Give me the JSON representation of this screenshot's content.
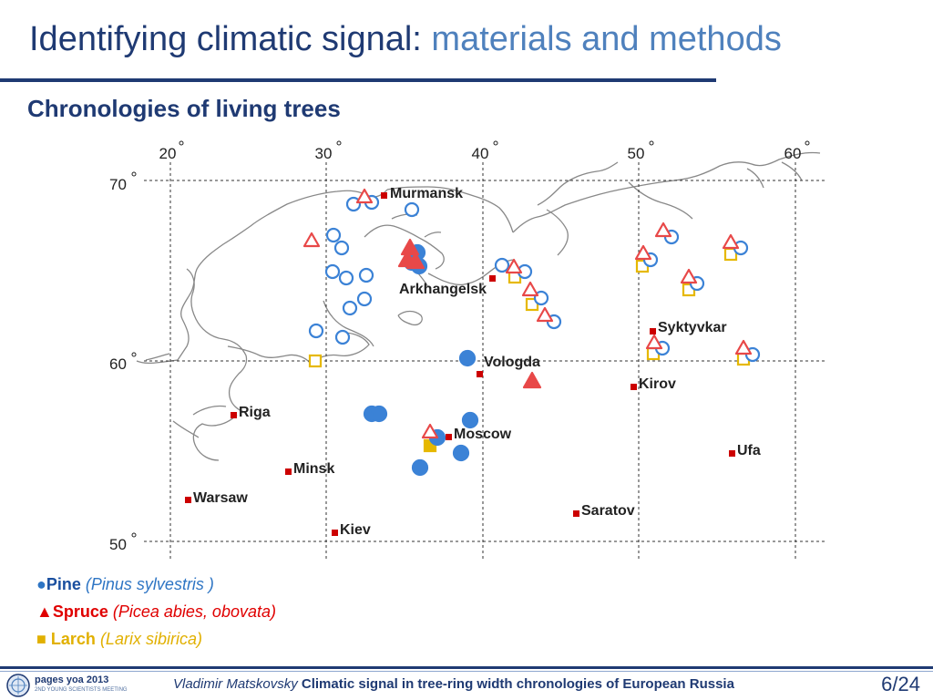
{
  "header": {
    "title_main": "Identifying climatic signal: ",
    "title_accent": "materials and methods",
    "subtitle": "Chronologies of living trees"
  },
  "map": {
    "lon_labels": [
      "20",
      "30",
      "40",
      "50",
      "60"
    ],
    "lat_labels": [
      "70",
      "60",
      "50"
    ],
    "cities": [
      {
        "name": "Murmansk"
      },
      {
        "name": "Arkhangelsk"
      },
      {
        "name": "Syktyvkar"
      },
      {
        "name": "Vologda"
      },
      {
        "name": "Kirov"
      },
      {
        "name": "Riga"
      },
      {
        "name": "Moscow"
      },
      {
        "name": "Minsk"
      },
      {
        "name": "Ufa"
      },
      {
        "name": "Warsaw"
      },
      {
        "name": "Saratov"
      },
      {
        "name": "Kiev"
      }
    ],
    "colors": {
      "pine": "#3b82d6",
      "spruce": "#e84848",
      "larch": "#e6b800",
      "city": "#cc0000",
      "coast": "#888888"
    }
  },
  "legend": {
    "pine_common": "Pine",
    "pine_sci": "(Pinus sylvestris )",
    "spruce_common": "Spruce",
    "spruce_sci": "(Picea abies, obovata)",
    "larch_common": "Larch",
    "larch_sci": "(Larix sibirica)"
  },
  "footer": {
    "logo_text": "pages yoa 2013",
    "logo_sub": "2ND YOUNG SCIENTISTS MEETING",
    "author": "Vladimir Matskovsky",
    "talk_title": "Climatic signal in tree-ring width chronologies of European Russia",
    "page": "6/24"
  }
}
